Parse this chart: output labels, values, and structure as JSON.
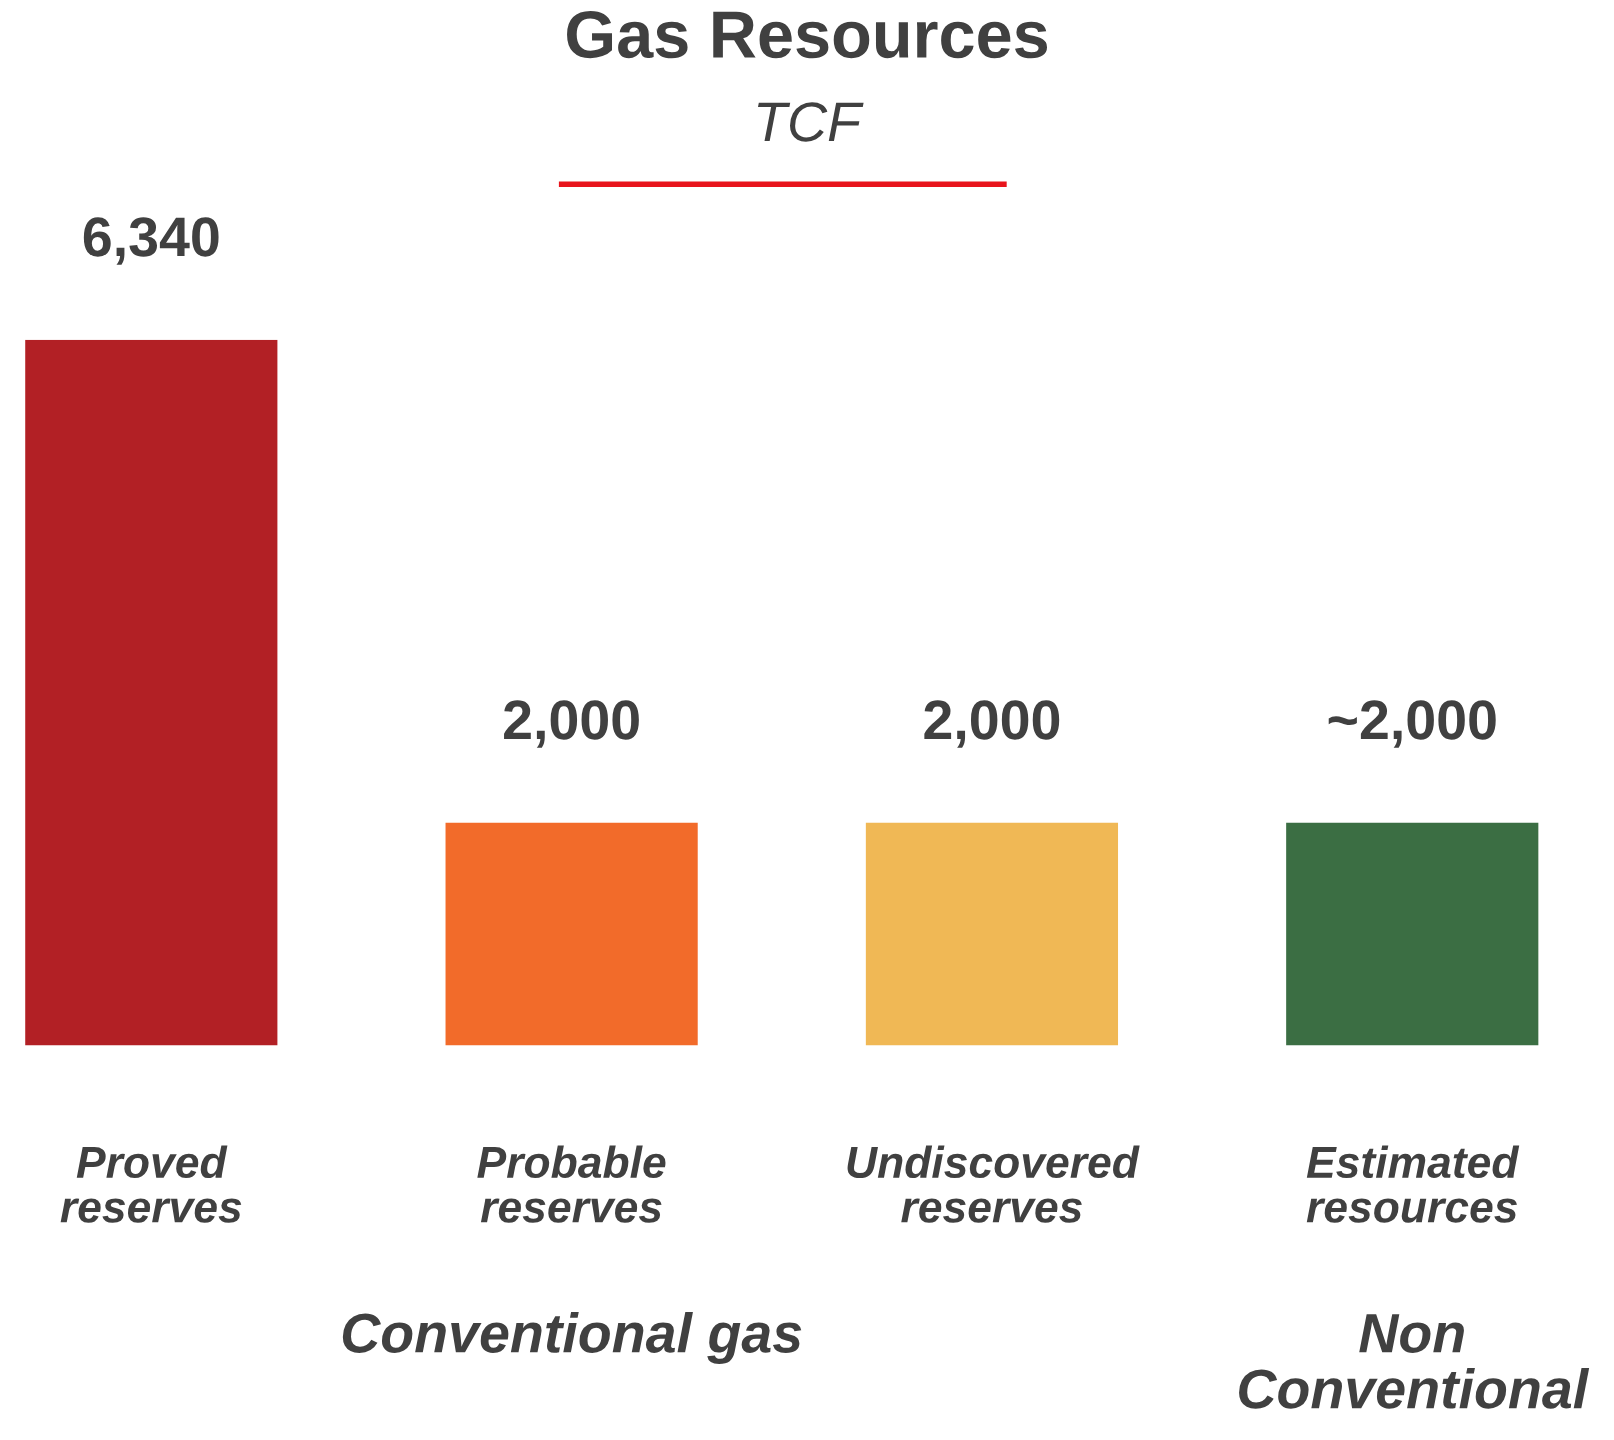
{
  "chart_data": {
    "type": "bar",
    "title": "Gas Resources",
    "subtitle": "TCF",
    "categories": [
      "Proved\nreserves",
      "Probable\nreserves",
      "Undiscovered\nreserves",
      "Estimated\nresources"
    ],
    "values": [
      6340,
      2000,
      2000,
      2000
    ],
    "colors": [
      "#b22025",
      "#f26b2a",
      "#f0b855",
      "#3b6e43"
    ],
    "value_labels": [
      "6,340",
      "2,000",
      "2,000",
      "~2,000"
    ],
    "annotations": [
      "Conventional gas",
      "Non\nConventional"
    ],
    "tick_labels": "x",
    "grid": false,
    "legend": false
  }
}
